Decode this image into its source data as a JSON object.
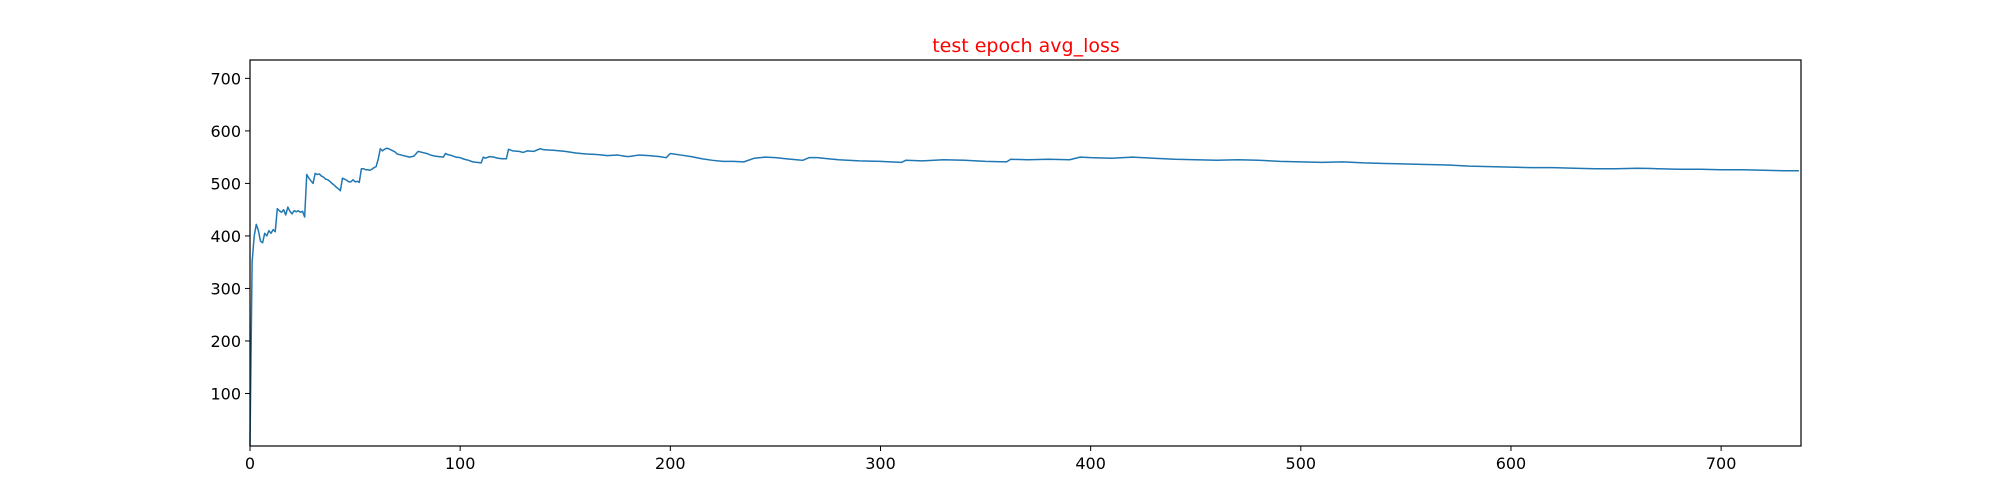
{
  "chart_data": {
    "type": "line",
    "title": "test epoch avg_loss",
    "title_color": "#ff0000",
    "xlabel": "",
    "ylabel": "",
    "xlim": [
      0,
      738
    ],
    "ylim": [
      0,
      735
    ],
    "xticks": [
      0,
      100,
      200,
      300,
      400,
      500,
      600,
      700
    ],
    "yticks": [
      100,
      200,
      300,
      400,
      500,
      600,
      700
    ],
    "grid": false,
    "series": [
      {
        "color": "#1f77b4",
        "points": [
          [
            0,
            0
          ],
          [
            1,
            350
          ],
          [
            2,
            400
          ],
          [
            3,
            422
          ],
          [
            4,
            410
          ],
          [
            5,
            390
          ],
          [
            6,
            387
          ],
          [
            7,
            405
          ],
          [
            8,
            400
          ],
          [
            9,
            410
          ],
          [
            10,
            405
          ],
          [
            11,
            412
          ],
          [
            12,
            408
          ],
          [
            13,
            452
          ],
          [
            14,
            448
          ],
          [
            15,
            445
          ],
          [
            16,
            450
          ],
          [
            17,
            440
          ],
          [
            18,
            455
          ],
          [
            19,
            447
          ],
          [
            20,
            442
          ],
          [
            21,
            448
          ],
          [
            22,
            446
          ],
          [
            23,
            448
          ],
          [
            24,
            445
          ],
          [
            25,
            447
          ],
          [
            26,
            436
          ],
          [
            27,
            517
          ],
          [
            28,
            510
          ],
          [
            29,
            505
          ],
          [
            30,
            500
          ],
          [
            31,
            519
          ],
          [
            32,
            517
          ],
          [
            33,
            518
          ],
          [
            34,
            514
          ],
          [
            35,
            512
          ],
          [
            36,
            508
          ],
          [
            37,
            507
          ],
          [
            38,
            504
          ],
          [
            39,
            500
          ],
          [
            40,
            497
          ],
          [
            41,
            493
          ],
          [
            42,
            490
          ],
          [
            43,
            486
          ],
          [
            44,
            510
          ],
          [
            45,
            508
          ],
          [
            46,
            506
          ],
          [
            47,
            503
          ],
          [
            48,
            503
          ],
          [
            49,
            507
          ],
          [
            50,
            503
          ],
          [
            51,
            504
          ],
          [
            52,
            502
          ],
          [
            53,
            528
          ],
          [
            54,
            528
          ],
          [
            55,
            526
          ],
          [
            56,
            526
          ],
          [
            57,
            525
          ],
          [
            58,
            527
          ],
          [
            59,
            530
          ],
          [
            60,
            532
          ],
          [
            61,
            546
          ],
          [
            62,
            566
          ],
          [
            63,
            562
          ],
          [
            64,
            565
          ],
          [
            65,
            567
          ],
          [
            66,
            566
          ],
          [
            67,
            564
          ],
          [
            68,
            562
          ],
          [
            69,
            560
          ],
          [
            70,
            556
          ],
          [
            72,
            554
          ],
          [
            74,
            552
          ],
          [
            76,
            550
          ],
          [
            78,
            552
          ],
          [
            80,
            561
          ],
          [
            82,
            559
          ],
          [
            84,
            557
          ],
          [
            86,
            554
          ],
          [
            88,
            552
          ],
          [
            90,
            551
          ],
          [
            92,
            550
          ],
          [
            93,
            557
          ],
          [
            94,
            555
          ],
          [
            96,
            553
          ],
          [
            98,
            550
          ],
          [
            100,
            549
          ],
          [
            102,
            546
          ],
          [
            104,
            544
          ],
          [
            106,
            541
          ],
          [
            108,
            540
          ],
          [
            110,
            539
          ],
          [
            111,
            550
          ],
          [
            112,
            548
          ],
          [
            114,
            551
          ],
          [
            116,
            550
          ],
          [
            118,
            548
          ],
          [
            120,
            547
          ],
          [
            122,
            547
          ],
          [
            123,
            565
          ],
          [
            125,
            562
          ],
          [
            128,
            561
          ],
          [
            130,
            559
          ],
          [
            132,
            562
          ],
          [
            135,
            561
          ],
          [
            138,
            566
          ],
          [
            140,
            564
          ],
          [
            145,
            563
          ],
          [
            150,
            561
          ],
          [
            155,
            558
          ],
          [
            160,
            556
          ],
          [
            165,
            555
          ],
          [
            170,
            553
          ],
          [
            175,
            554
          ],
          [
            178,
            552
          ],
          [
            180,
            551
          ],
          [
            185,
            554
          ],
          [
            190,
            553
          ],
          [
            195,
            551
          ],
          [
            198,
            549
          ],
          [
            200,
            557
          ],
          [
            205,
            554
          ],
          [
            210,
            551
          ],
          [
            215,
            547
          ],
          [
            220,
            544
          ],
          [
            225,
            542
          ],
          [
            230,
            542
          ],
          [
            235,
            541
          ],
          [
            240,
            548
          ],
          [
            245,
            550
          ],
          [
            250,
            549
          ],
          [
            255,
            547
          ],
          [
            260,
            545
          ],
          [
            263,
            544
          ],
          [
            266,
            549
          ],
          [
            270,
            549
          ],
          [
            275,
            547
          ],
          [
            280,
            545
          ],
          [
            290,
            543
          ],
          [
            300,
            542
          ],
          [
            305,
            541
          ],
          [
            310,
            540
          ],
          [
            312,
            544
          ],
          [
            320,
            543
          ],
          [
            330,
            545
          ],
          [
            340,
            544
          ],
          [
            350,
            542
          ],
          [
            360,
            541
          ],
          [
            362,
            546
          ],
          [
            370,
            545
          ],
          [
            380,
            546
          ],
          [
            390,
            545
          ],
          [
            395,
            550
          ],
          [
            400,
            549
          ],
          [
            410,
            548
          ],
          [
            420,
            550
          ],
          [
            430,
            548
          ],
          [
            440,
            546
          ],
          [
            450,
            545
          ],
          [
            460,
            544
          ],
          [
            470,
            545
          ],
          [
            480,
            544
          ],
          [
            490,
            542
          ],
          [
            500,
            541
          ],
          [
            510,
            540
          ],
          [
            520,
            541
          ],
          [
            530,
            539
          ],
          [
            540,
            538
          ],
          [
            550,
            537
          ],
          [
            560,
            536
          ],
          [
            570,
            535
          ],
          [
            580,
            533
          ],
          [
            590,
            532
          ],
          [
            600,
            531
          ],
          [
            610,
            530
          ],
          [
            620,
            530
          ],
          [
            630,
            529
          ],
          [
            640,
            528
          ],
          [
            650,
            528
          ],
          [
            660,
            529
          ],
          [
            670,
            528
          ],
          [
            680,
            527
          ],
          [
            690,
            527
          ],
          [
            700,
            526
          ],
          [
            710,
            526
          ],
          [
            720,
            525
          ],
          [
            730,
            524
          ],
          [
            737,
            524
          ]
        ]
      }
    ]
  }
}
